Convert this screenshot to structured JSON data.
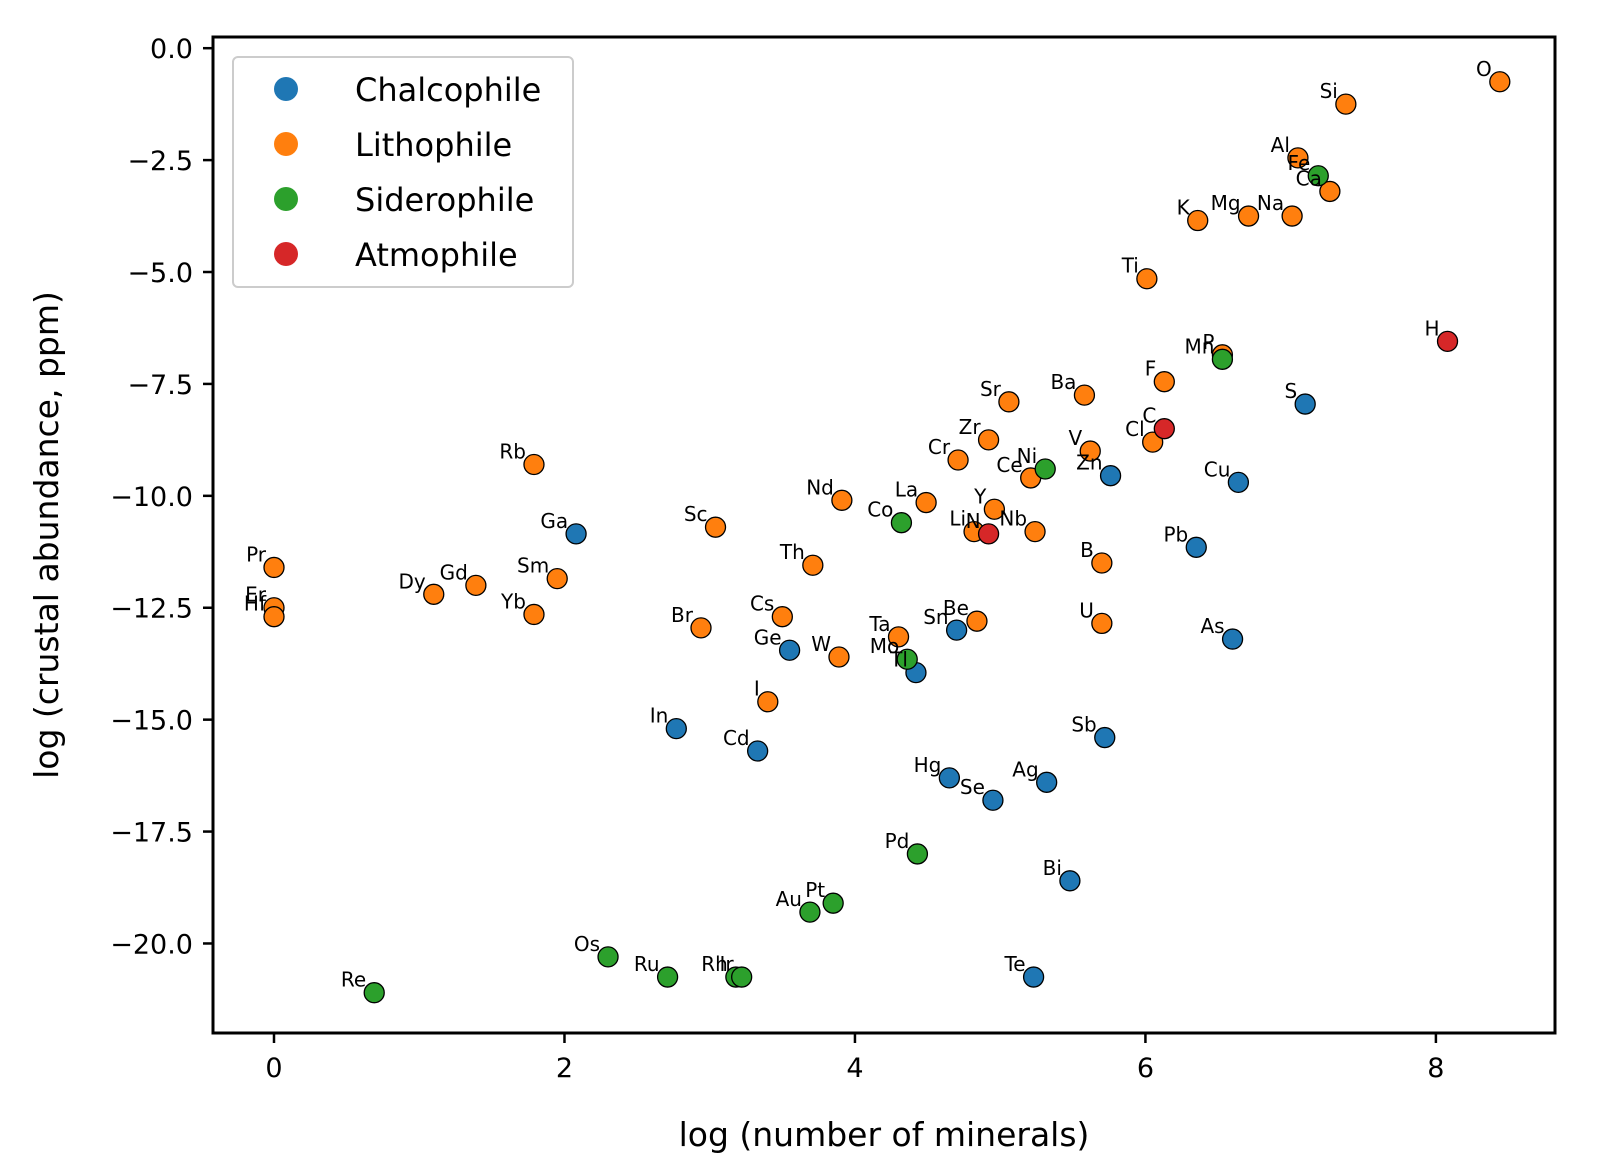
{
  "chart_data": {
    "type": "scatter",
    "title": "",
    "xlabel": "log (number of minerals)",
    "ylabel": "log (crustal abundance, ppm)",
    "xlim": [
      -0.42,
      8.82
    ],
    "ylim": [
      -22.0,
      0.25
    ],
    "xticks": [
      0,
      2,
      4,
      6,
      8
    ],
    "yticks": [
      0,
      -2.5,
      -5,
      -7.5,
      -10,
      -12.5,
      -15,
      -17.5,
      -20
    ],
    "xtick_labels": [
      "0",
      "2",
      "4",
      "6",
      "8"
    ],
    "ytick_labels": [
      "0.0",
      "−2.5",
      "−5.0",
      "−7.5",
      "−10.0",
      "−12.5",
      "−15.0",
      "−17.5",
      "−20.0"
    ],
    "grid": false,
    "legend": {
      "position": "top-left",
      "entries": [
        {
          "name": "Chalcophile",
          "color": "#1f77b4"
        },
        {
          "name": "Lithophile",
          "color": "#ff7f0e"
        },
        {
          "name": "Siderophile",
          "color": "#2ca02c"
        },
        {
          "name": "Atmophile",
          "color": "#d62728"
        }
      ]
    },
    "series": [
      {
        "name": "Chalcophile",
        "color": "#1f77b4",
        "points": [
          {
            "label": "Ga",
            "x": 2.08,
            "y": -10.85
          },
          {
            "label": "Ge",
            "x": 3.55,
            "y": -13.45
          },
          {
            "label": "In",
            "x": 2.77,
            "y": -15.2
          },
          {
            "label": "Cd",
            "x": 3.33,
            "y": -15.7
          },
          {
            "label": "Sn",
            "x": 4.7,
            "y": -13.0
          },
          {
            "label": "Tl",
            "x": 4.42,
            "y": -13.95
          },
          {
            "label": "Hg",
            "x": 4.65,
            "y": -16.3
          },
          {
            "label": "Se",
            "x": 4.95,
            "y": -16.8
          },
          {
            "label": "Ag",
            "x": 5.32,
            "y": -16.4
          },
          {
            "label": "Zn",
            "x": 5.76,
            "y": -9.55
          },
          {
            "label": "Sb",
            "x": 5.72,
            "y": -15.4
          },
          {
            "label": "Bi",
            "x": 5.48,
            "y": -18.6
          },
          {
            "label": "Te",
            "x": 5.23,
            "y": -20.75
          },
          {
            "label": "Pb",
            "x": 6.35,
            "y": -11.15
          },
          {
            "label": "As",
            "x": 6.6,
            "y": -13.2
          },
          {
            "label": "Cu",
            "x": 6.64,
            "y": -9.7
          },
          {
            "label": "S",
            "x": 7.1,
            "y": -7.95
          }
        ]
      },
      {
        "name": "Lithophile",
        "color": "#ff7f0e",
        "points": [
          {
            "label": "Pr",
            "x": 0.0,
            "y": -11.6
          },
          {
            "label": "Er",
            "x": 0.0,
            "y": -12.5
          },
          {
            "label": "Hf",
            "x": 0.0,
            "y": -12.7
          },
          {
            "label": "Dy",
            "x": 1.1,
            "y": -12.2
          },
          {
            "label": "Gd",
            "x": 1.39,
            "y": -12.0
          },
          {
            "label": "Yb",
            "x": 1.79,
            "y": -12.65
          },
          {
            "label": "Sm",
            "x": 1.95,
            "y": -11.85
          },
          {
            "label": "Rb",
            "x": 1.79,
            "y": -9.3
          },
          {
            "label": "Sc",
            "x": 3.04,
            "y": -10.7
          },
          {
            "label": "Br",
            "x": 2.94,
            "y": -12.95
          },
          {
            "label": "Cs",
            "x": 3.5,
            "y": -12.7
          },
          {
            "label": "W",
            "x": 3.89,
            "y": -13.6
          },
          {
            "label": "I",
            "x": 3.4,
            "y": -14.6
          },
          {
            "label": "Th",
            "x": 3.71,
            "y": -11.55
          },
          {
            "label": "Nd",
            "x": 3.91,
            "y": -10.1
          },
          {
            "label": "La",
            "x": 4.49,
            "y": -10.15
          },
          {
            "label": "Ta",
            "x": 4.3,
            "y": -13.15
          },
          {
            "label": "Be",
            "x": 4.84,
            "y": -12.8
          },
          {
            "label": "Cr",
            "x": 4.71,
            "y": -9.2
          },
          {
            "label": "Zr",
            "x": 4.92,
            "y": -8.75
          },
          {
            "label": "Sr",
            "x": 5.06,
            "y": -7.9
          },
          {
            "label": "Y",
            "x": 4.96,
            "y": -10.3
          },
          {
            "label": "Li",
            "x": 4.82,
            "y": -10.8
          },
          {
            "label": "Ce",
            "x": 5.21,
            "y": -9.6
          },
          {
            "label": "Nb",
            "x": 5.24,
            "y": -10.8
          },
          {
            "label": "V",
            "x": 5.62,
            "y": -9.0
          },
          {
            "label": "Ba",
            "x": 5.58,
            "y": -7.75
          },
          {
            "label": "B",
            "x": 5.7,
            "y": -11.5
          },
          {
            "label": "U",
            "x": 5.7,
            "y": -12.85
          },
          {
            "label": "Cl",
            "x": 6.05,
            "y": -8.8
          },
          {
            "label": "F",
            "x": 6.13,
            "y": -7.45
          },
          {
            "label": "Ti",
            "x": 6.01,
            "y": -5.15
          },
          {
            "label": "P",
            "x": 6.53,
            "y": -6.85
          },
          {
            "label": "K",
            "x": 6.36,
            "y": -3.85
          },
          {
            "label": "Mg",
            "x": 6.71,
            "y": -3.75
          },
          {
            "label": "Na",
            "x": 7.01,
            "y": -3.75
          },
          {
            "label": "Al",
            "x": 7.05,
            "y": -2.45
          },
          {
            "label": "Ca",
            "x": 7.27,
            "y": -3.2
          },
          {
            "label": "Si",
            "x": 7.38,
            "y": -1.25
          },
          {
            "label": "O",
            "x": 8.44,
            "y": -0.75
          }
        ]
      },
      {
        "name": "Siderophile",
        "color": "#2ca02c",
        "points": [
          {
            "label": "Re",
            "x": 0.69,
            "y": -21.1
          },
          {
            "label": "Os",
            "x": 2.3,
            "y": -20.3
          },
          {
            "label": "Ru",
            "x": 2.71,
            "y": -20.75
          },
          {
            "label": "Rh",
            "x": 3.18,
            "y": -20.75
          },
          {
            "label": "Ir",
            "x": 3.22,
            "y": -20.75
          },
          {
            "label": "Au",
            "x": 3.69,
            "y": -19.3
          },
          {
            "label": "Pt",
            "x": 3.85,
            "y": -19.1
          },
          {
            "label": "Pd",
            "x": 4.43,
            "y": -18.0
          },
          {
            "label": "Co",
            "x": 4.32,
            "y": -10.6
          },
          {
            "label": "Mo",
            "x": 4.36,
            "y": -13.65
          },
          {
            "label": "Ni",
            "x": 5.31,
            "y": -9.4
          },
          {
            "label": "Mn",
            "x": 6.53,
            "y": -6.95
          },
          {
            "label": "Fe",
            "x": 7.19,
            "y": -2.85
          }
        ]
      },
      {
        "name": "Atmophile",
        "color": "#d62728",
        "points": [
          {
            "label": "N",
            "x": 4.92,
            "y": -10.85
          },
          {
            "label": "C",
            "x": 6.13,
            "y": -8.5
          },
          {
            "label": "H",
            "x": 8.08,
            "y": -6.55
          }
        ]
      }
    ]
  }
}
